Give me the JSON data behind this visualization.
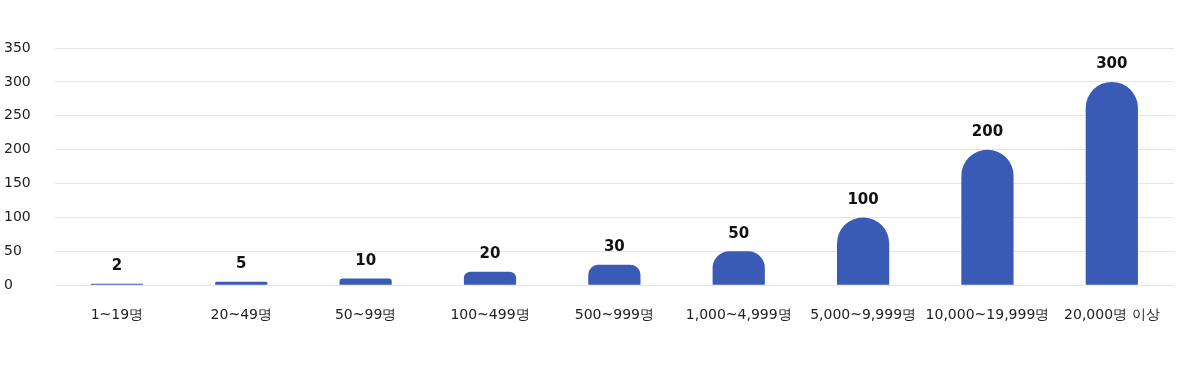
{
  "chart_data": {
    "type": "bar",
    "categories": [
      "1~19명",
      "20~49명",
      "50~99명",
      "100~499명",
      "500~999명",
      "1,000~4,999명",
      "5,000~9,999명",
      "10,000~19,999명",
      "20,000명 이상"
    ],
    "values": [
      2,
      5,
      10,
      20,
      30,
      50,
      100,
      200,
      300
    ],
    "color": "#3a5bb5",
    "ylim": [
      0,
      350
    ],
    "yticks": [
      0,
      50,
      100,
      150,
      200,
      250,
      300,
      350
    ],
    "grid": "y",
    "legend": false,
    "data_labels": true
  }
}
